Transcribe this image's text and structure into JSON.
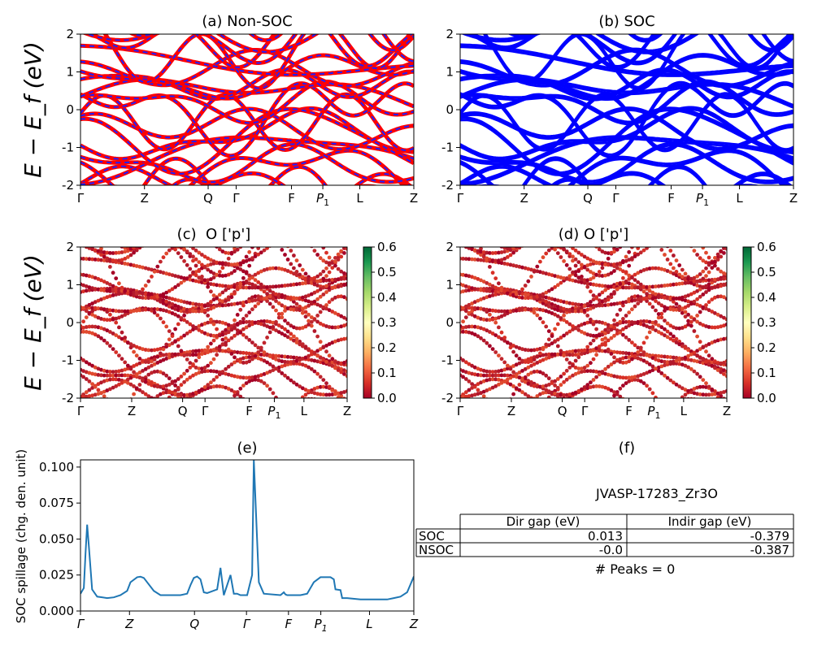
{
  "figure": {
    "kpath_labels": [
      "Γ",
      "Z",
      "Q",
      "Γ",
      "F",
      "P1",
      "L",
      "Z"
    ],
    "ylabel": "E − E_f (eV)",
    "band_colors": {
      "nonsoc_outer": "#ff0000",
      "nonsoc_inner": "#1f1fff",
      "soc": "#0000ff"
    },
    "colormap": "RdYlGn"
  },
  "chart_data": [
    {
      "type": "line",
      "title": "(a) Non-SOC",
      "ylabel": "E − E_f (eV)",
      "ylim": [
        -2,
        2
      ],
      "yticks": [
        -2,
        -1,
        0,
        1,
        2
      ],
      "xticks": [
        "Γ",
        "Z",
        "Q",
        "Γ",
        "F",
        "P1",
        "L",
        "Z"
      ],
      "xtick_pos": [
        0,
        0.192,
        0.383,
        0.467,
        0.633,
        0.727,
        0.838,
        1.0
      ],
      "series_style": "red bands overlaid with dashed blue bands",
      "grid": false
    },
    {
      "type": "line",
      "title": "(b) SOC",
      "ylim": [
        -2,
        2
      ],
      "yticks": [
        -2,
        -1,
        0,
        1,
        2
      ],
      "xticks": [
        "Γ",
        "Z",
        "Q",
        "Γ",
        "F",
        "P1",
        "L",
        "Z"
      ],
      "xtick_pos": [
        0,
        0.192,
        0.383,
        0.467,
        0.633,
        0.727,
        0.838,
        1.0
      ],
      "series_style": "blue bands (spin-split)",
      "grid": false
    },
    {
      "type": "scatter",
      "title": "(c)  O ['p']",
      "ylabel": "E − E_f (eV)",
      "ylim": [
        -2,
        2
      ],
      "yticks": [
        -2,
        -1,
        0,
        1,
        2
      ],
      "xticks": [
        "Γ",
        "Z",
        "Q",
        "Γ",
        "F",
        "P1",
        "L",
        "Z"
      ],
      "xtick_pos": [
        0,
        0.192,
        0.383,
        0.467,
        0.633,
        0.727,
        0.838,
        1.0
      ],
      "colorbar": {
        "min": 0.0,
        "max": 0.6,
        "ticks": [
          "0.0",
          "0.1",
          "0.2",
          "0.3",
          "0.4",
          "0.5",
          "0.6"
        ]
      },
      "grid": false
    },
    {
      "type": "scatter",
      "title": "(d) O ['p']",
      "ylim": [
        -2,
        2
      ],
      "yticks": [
        -2,
        -1,
        0,
        1,
        2
      ],
      "xticks": [
        "Γ",
        "Z",
        "Q",
        "Γ",
        "F",
        "P1",
        "L",
        "Z"
      ],
      "xtick_pos": [
        0,
        0.192,
        0.383,
        0.467,
        0.633,
        0.727,
        0.838,
        1.0
      ],
      "colorbar": {
        "min": 0.0,
        "max": 0.6,
        "ticks": [
          "0.0",
          "0.1",
          "0.2",
          "0.3",
          "0.4",
          "0.5",
          "0.6"
        ]
      },
      "grid": false
    },
    {
      "type": "line",
      "title": "(e)",
      "ylabel": "SOC spillage (chg. den. unit)",
      "ylim": [
        0,
        0.105
      ],
      "yticks": [
        "0.000",
        "0.025",
        "0.050",
        "0.075",
        "0.100"
      ],
      "xticks": [
        "Γ",
        "Z",
        "Q",
        "Γ",
        "F",
        "P1",
        "L",
        "Z"
      ],
      "xtick_pos": [
        0,
        0.147,
        0.342,
        0.498,
        0.624,
        0.721,
        0.867,
        1.0
      ],
      "color": "#1f77b4",
      "x": [
        0,
        0.01,
        0.015,
        0.02,
        0.025,
        0.035,
        0.05,
        0.08,
        0.1,
        0.12,
        0.14,
        0.15,
        0.17,
        0.18,
        0.19,
        0.22,
        0.24,
        0.27,
        0.3,
        0.32,
        0.33,
        0.34,
        0.35,
        0.36,
        0.37,
        0.38,
        0.41,
        0.42,
        0.43,
        0.45,
        0.46,
        0.47,
        0.48,
        0.5,
        0.515,
        0.52,
        0.535,
        0.55,
        0.6,
        0.61,
        0.615,
        0.62,
        0.64,
        0.66,
        0.68,
        0.7,
        0.72,
        0.75,
        0.76,
        0.765,
        0.78,
        0.785,
        0.8,
        0.84,
        0.88,
        0.92,
        0.94,
        0.96,
        0.98,
        1.0
      ],
      "values": [
        0.012,
        0.016,
        0.04,
        0.06,
        0.045,
        0.015,
        0.01,
        0.009,
        0.0095,
        0.011,
        0.014,
        0.02,
        0.0235,
        0.0238,
        0.023,
        0.014,
        0.011,
        0.011,
        0.011,
        0.012,
        0.018,
        0.023,
        0.024,
        0.022,
        0.013,
        0.0125,
        0.015,
        0.03,
        0.011,
        0.025,
        0.012,
        0.012,
        0.011,
        0.011,
        0.025,
        0.105,
        0.02,
        0.012,
        0.011,
        0.013,
        0.0115,
        0.011,
        0.011,
        0.011,
        0.012,
        0.02,
        0.0235,
        0.0235,
        0.022,
        0.015,
        0.0145,
        0.009,
        0.009,
        0.008,
        0.008,
        0.008,
        0.009,
        0.01,
        0.013,
        0.024
      ],
      "grid": false
    }
  ],
  "panel_f": {
    "title": "(f)",
    "material_id": "JVASP-17283_Zr3O",
    "table": {
      "headers": [
        "",
        "Dir gap (eV)",
        "Indir gap (eV)"
      ],
      "rows": [
        {
          "label": "SOC",
          "dir": "0.013",
          "indir": "-0.379"
        },
        {
          "label": "NSOC",
          "dir": "-0.0",
          "indir": "-0.387"
        }
      ]
    },
    "peaks_text": "# Peaks = 0"
  }
}
